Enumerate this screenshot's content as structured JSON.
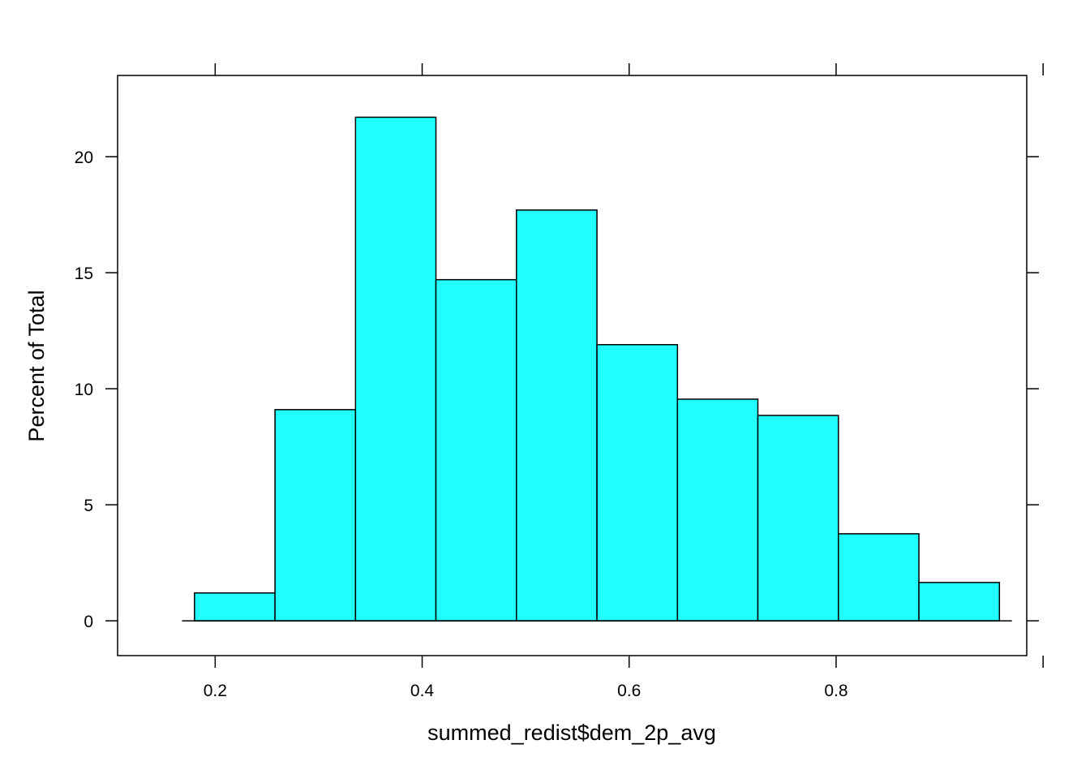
{
  "chart_data": {
    "type": "bar",
    "title": "",
    "xlabel": "summed_redist$dem_2p_avg",
    "ylabel": "Percent of Total",
    "bin_edges": [
      0.18,
      0.2578,
      0.3356,
      0.4133,
      0.4911,
      0.5689,
      0.6467,
      0.7244,
      0.8022,
      0.88,
      0.9578
    ],
    "values": [
      1.2,
      9.1,
      21.7,
      14.7,
      17.7,
      11.9,
      9.55,
      8.85,
      3.75,
      1.65
    ],
    "xlim": [
      0.1057,
      0.9842
    ],
    "ylim": [
      -1.5,
      23.5
    ],
    "x_ticks": [
      0.2,
      0.4,
      0.6,
      0.8
    ],
    "x_tick_labels": [
      "0.2",
      "0.4",
      "0.6",
      "0.8"
    ],
    "y_ticks": [
      0,
      5,
      10,
      15,
      20
    ],
    "y_tick_labels": [
      "0",
      "5",
      "10",
      "15",
      "20"
    ],
    "grid": false,
    "colors": {
      "bar_fill": "#22FFFF",
      "bar_stroke": "#000000",
      "axis": "#000000"
    }
  }
}
